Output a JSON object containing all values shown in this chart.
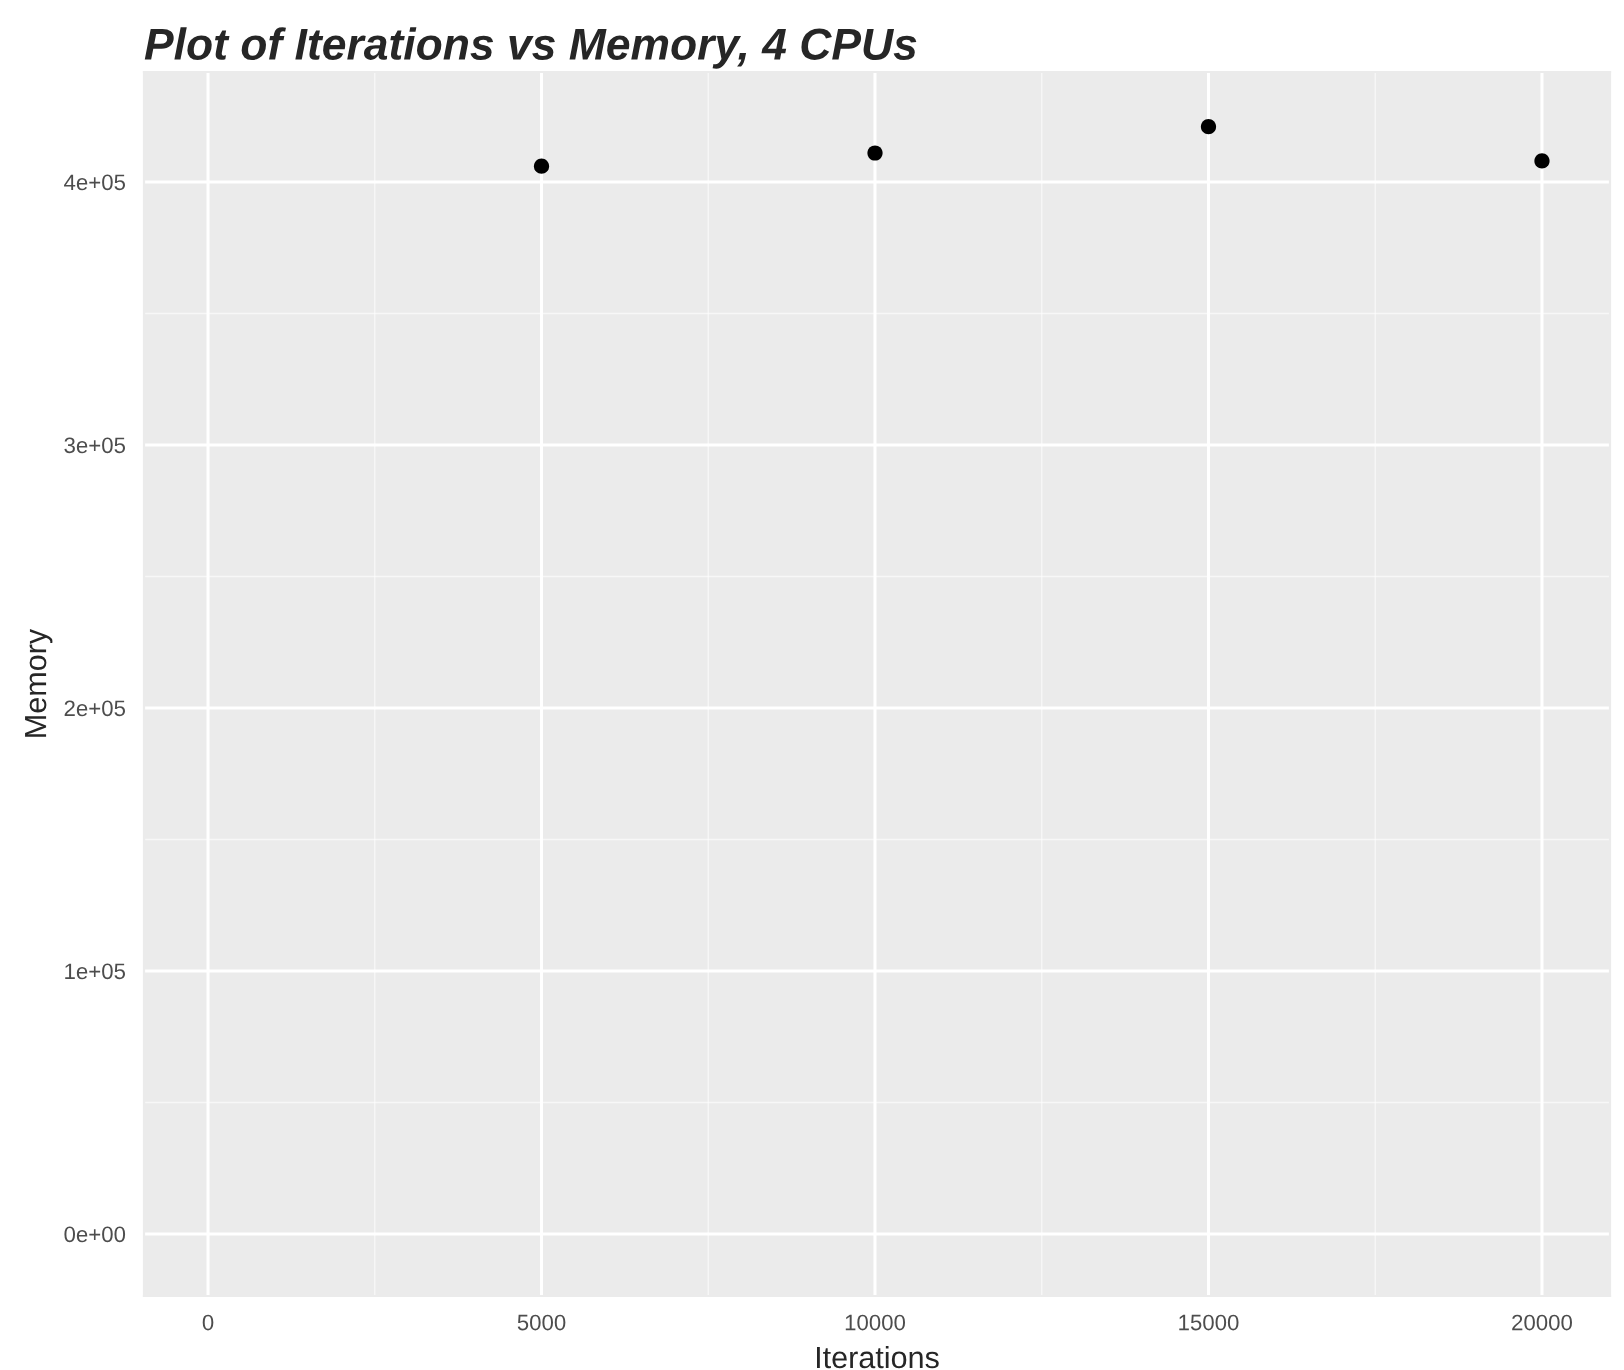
{
  "chart_data": {
    "type": "scatter",
    "title": "Plot of Iterations vs Memory, 4 CPUs",
    "xlabel": "Iterations",
    "ylabel": "Memory",
    "x": [
      5000,
      10000,
      15000,
      20000
    ],
    "values": [
      406000,
      411000,
      421000,
      408000
    ],
    "color": "#000000",
    "marker": "circle",
    "grid": true,
    "xlim": [
      -960,
      21020
    ],
    "xticks": [
      0,
      5000,
      10000,
      15000,
      20000
    ],
    "ylim": [
      -23600,
      441800
    ],
    "yticks": [
      {
        "value": 0,
        "label": "0e+00"
      },
      {
        "value": 100000,
        "label": "1e+05"
      },
      {
        "value": 200000,
        "label": "2e+05"
      },
      {
        "value": 300000,
        "label": "3e+05"
      },
      {
        "value": 400000,
        "label": "4e+05"
      }
    ]
  }
}
